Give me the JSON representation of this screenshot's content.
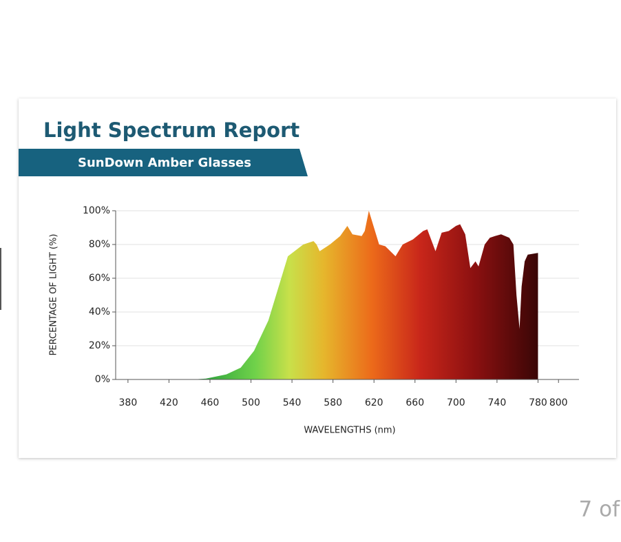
{
  "page_indicator": "7 of",
  "chart_data": {
    "type": "area",
    "title": "Light Spectrum Report",
    "subtitle": "SunDown Amber Glasses",
    "x_label": "WAVELENGTHS (nm)",
    "y_label": "PERCENTAGE OF LIGHT (%)",
    "x": [
      443,
      456,
      476,
      490,
      503,
      517,
      527,
      536,
      551,
      561,
      564,
      567,
      577,
      587,
      594,
      599,
      608,
      611,
      615,
      619,
      625,
      631,
      641,
      648,
      658,
      668,
      672,
      680,
      686,
      693,
      700,
      704,
      709,
      714,
      719,
      722,
      728,
      733,
      738,
      744,
      752,
      756,
      759,
      762,
      764,
      767,
      770,
      780
    ],
    "values": [
      0,
      0.5,
      3,
      7,
      17,
      35,
      55,
      73,
      80,
      82,
      80,
      76,
      80,
      85,
      91,
      86,
      85,
      88,
      100,
      92,
      80,
      79,
      73,
      80,
      83,
      88,
      89,
      76,
      87,
      88,
      91,
      92,
      86,
      66,
      70,
      67,
      80,
      84,
      85,
      86,
      84,
      80,
      50,
      30,
      55,
      70,
      74,
      75
    ],
    "xlim": [
      368,
      820
    ],
    "ylim": [
      0,
      100
    ],
    "xticks": [
      380,
      420,
      460,
      500,
      540,
      580,
      620,
      660,
      700,
      740,
      780,
      800
    ],
    "yticks": [
      {
        "value": 0,
        "label": "0%"
      },
      {
        "value": 20,
        "label": "20%"
      },
      {
        "value": 40,
        "label": "40%"
      },
      {
        "value": 60,
        "label": "60%"
      },
      {
        "value": 80,
        "label": "80%"
      },
      {
        "value": 100,
        "label": "100%"
      }
    ],
    "grid": true
  }
}
